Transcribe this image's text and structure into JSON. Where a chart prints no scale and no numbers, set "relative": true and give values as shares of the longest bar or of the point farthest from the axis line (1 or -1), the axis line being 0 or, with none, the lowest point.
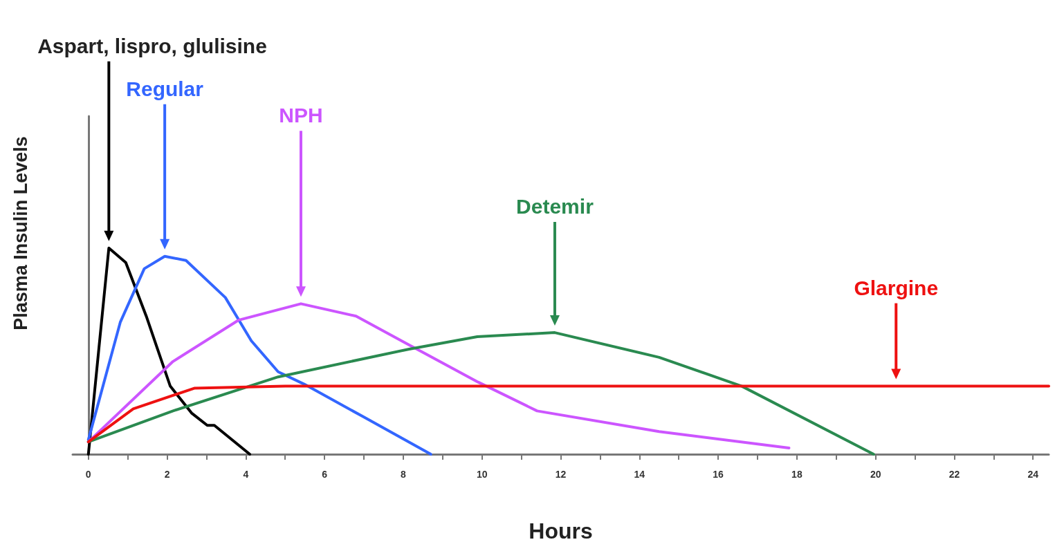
{
  "chart_data": {
    "type": "line",
    "relative": true,
    "xlabel": "Hours",
    "ylabel": "Plasma Insulin Levels",
    "xlim": [
      -0.4,
      24.4
    ],
    "xticks": [
      0,
      {
        "value": 1,
        "label": null
      },
      2,
      {
        "value": 3,
        "label": null
      },
      4,
      {
        "value": 5,
        "label": null
      },
      6,
      {
        "value": 7,
        "label": null
      },
      8,
      {
        "value": 9,
        "label": null
      },
      10,
      {
        "value": 11,
        "label": null
      },
      12,
      {
        "value": 13,
        "label": null
      },
      14,
      {
        "value": 15,
        "label": null
      },
      16,
      {
        "value": 17,
        "label": null
      },
      18,
      {
        "value": 19,
        "label": null
      },
      20,
      {
        "value": 21,
        "label": null
      },
      22,
      {
        "value": 23,
        "label": null
      },
      24
    ],
    "marker": "none",
    "line_style": "solid",
    "series": [
      {
        "color": "#000000",
        "x": [
          0,
          0.52,
          0.95,
          1.47,
          2.08,
          2.62,
          3.02,
          3.2,
          4.1
        ],
        "values": [
          0,
          1.0,
          0.93,
          0.67,
          0.33,
          0.2,
          0.14,
          0.14,
          0
        ]
      },
      {
        "color": "#3366ff",
        "x": [
          0,
          0.81,
          1.42,
          1.94,
          2.48,
          3.48,
          4.14,
          4.82,
          5.48,
          7,
          8.7
        ],
        "values": [
          0.07,
          0.64,
          0.9,
          0.96,
          0.94,
          0.76,
          0.55,
          0.4,
          0.34,
          0.18,
          0
        ]
      },
      {
        "color": "#cc55ff",
        "x": [
          0,
          2.15,
          3.81,
          5.4,
          6.8,
          8.15,
          9.9,
          11.4,
          14.5,
          17.8
        ],
        "values": [
          0.06,
          0.45,
          0.65,
          0.73,
          0.67,
          0.53,
          0.35,
          0.21,
          0.11,
          0.03
        ]
      },
      {
        "color": "#2a8a50",
        "x": [
          0,
          2.15,
          4.82,
          8.15,
          9.88,
          11.85,
          14.5,
          16.6,
          19.95
        ],
        "values": [
          0.06,
          0.21,
          0.375,
          0.51,
          0.57,
          0.59,
          0.47,
          0.33,
          0
        ]
      },
      {
        "color": "#ee1111",
        "x": [
          0,
          1.14,
          2.69,
          5,
          10,
          15,
          20,
          24.4
        ],
        "values": [
          0.06,
          0.22,
          0.32,
          0.33,
          0.33,
          0.33,
          0.33,
          0.33
        ]
      }
    ],
    "annotations": [
      "Aspart, lispro, glulisine",
      "Regular",
      "NPH",
      "Detemir",
      "Glargine"
    ]
  }
}
